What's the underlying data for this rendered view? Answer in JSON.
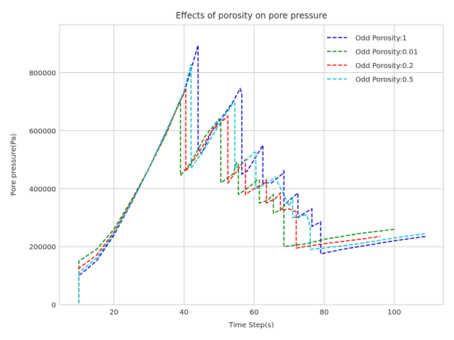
{
  "chart_data": {
    "type": "line",
    "title": "Effects of porosity on pore pressure",
    "xlabel": "Time Step(s)",
    "ylabel": "Pore pressure(Pa)",
    "xlim": [
      4.5,
      114
    ],
    "ylim": [
      0,
      965000
    ],
    "xticks": [
      20,
      40,
      60,
      80,
      100
    ],
    "xtick_labels": [
      "20",
      "40",
      "60",
      "80",
      "100"
    ],
    "yticks": [
      0,
      200000,
      400000,
      600000,
      800000
    ],
    "ytick_labels": [
      "0",
      "200000",
      "400000",
      "600000",
      "800000"
    ],
    "grid": true,
    "legend_position": "top-right",
    "line_style": "dashed",
    "series": [
      {
        "name": "Odd Porosity:1",
        "color": "#0000cc",
        "x": [
          10,
          10,
          15,
          20,
          25,
          30,
          35,
          40,
          42,
          44,
          44,
          45,
          48,
          52,
          54,
          56,
          56.5,
          56.5,
          58,
          60,
          62,
          62.5,
          62.5,
          65,
          68,
          68.5,
          68.5,
          70,
          72,
          72.5,
          72.5,
          75,
          76.5,
          76.5,
          79,
          79,
          85,
          90,
          100,
          109
        ],
        "y": [
          5000,
          100000,
          150000,
          240000,
          350000,
          470000,
          600000,
          730000,
          810000,
          895000,
          540000,
          520000,
          600000,
          665000,
          700000,
          745000,
          730000,
          450000,
          460000,
          500000,
          540000,
          550000,
          420000,
          420000,
          450000,
          460000,
          340000,
          360000,
          380000,
          385000,
          300000,
          320000,
          330000,
          270000,
          285000,
          175000,
          190000,
          200000,
          220000,
          235000
        ]
      },
      {
        "name": "Odd Porosity:0.01",
        "color": "#008000",
        "x": [
          10,
          10,
          15,
          20,
          25,
          30,
          35,
          39,
          39,
          42,
          46,
          50,
          50.5,
          50.5,
          54,
          55,
          55.5,
          55.5,
          58,
          60,
          61,
          61.5,
          61.5,
          64,
          65,
          65.5,
          65.5,
          68,
          68.5,
          68.5,
          75,
          80,
          90,
          100
        ],
        "y": [
          5000,
          150000,
          190000,
          260000,
          360000,
          470000,
          590000,
          710000,
          445000,
          490000,
          580000,
          640000,
          630000,
          420000,
          450000,
          490000,
          485000,
          380000,
          400000,
          420000,
          430000,
          430000,
          350000,
          360000,
          375000,
          380000,
          315000,
          330000,
          345000,
          200000,
          210000,
          225000,
          245000,
          260000
        ]
      },
      {
        "name": "Odd Porosity:0.2",
        "color": "#ff0000",
        "x": [
          10,
          10,
          15,
          20,
          25,
          30,
          35,
          40.5,
          40.5,
          44,
          48,
          52.5,
          52.5,
          55,
          57.5,
          57.5,
          60,
          63,
          63.5,
          63.5,
          66,
          67.5,
          67.5,
          70,
          72,
          72,
          80,
          90,
          96
        ],
        "y": [
          5000,
          125000,
          170000,
          250000,
          355000,
          470000,
          595000,
          745000,
          460000,
          520000,
          600000,
          650000,
          420000,
          460000,
          500000,
          380000,
          400000,
          420000,
          430000,
          350000,
          365000,
          385000,
          325000,
          330000,
          320000,
          195000,
          210000,
          225000,
          235000
        ]
      },
      {
        "name": "Odd Porosity:0.5",
        "color": "#00bfbf",
        "x": [
          10,
          10,
          15,
          20,
          25,
          30,
          35,
          40,
          42,
          42,
          46,
          50,
          54,
          54.5,
          54.5,
          58,
          60,
          60.5,
          60.5,
          64,
          66,
          66,
          70,
          71,
          71,
          75,
          76,
          76,
          80,
          90,
          100,
          109
        ],
        "y": [
          5000,
          110000,
          160000,
          245000,
          352000,
          470000,
          598000,
          735000,
          830000,
          470000,
          540000,
          620000,
          695000,
          695000,
          470000,
          500000,
          525000,
          525000,
          400000,
          420000,
          440000,
          440000,
          340000,
          370000,
          300000,
          310000,
          270000,
          190000,
          195000,
          210000,
          230000,
          245000
        ]
      }
    ]
  }
}
